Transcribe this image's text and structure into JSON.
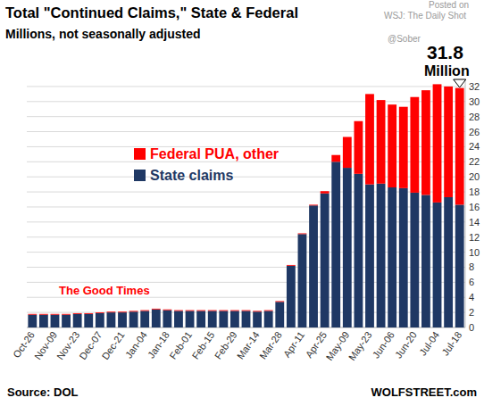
{
  "chart_data": {
    "type": "bar",
    "stacked": true,
    "grid": true,
    "title": "Total \"Continued Claims,\" State & Federal",
    "subtitle": "Millions, not seasonally adjusted",
    "annotations": [
      "The Good Times",
      "31.8",
      "Million"
    ],
    "source": "Source: DOL",
    "credit": "WOLFSTREET.com",
    "watermark": [
      "Posted on",
      "WSJ: The Daily Shot",
      "@Sober"
    ],
    "categories": [
      "Oct-26",
      null,
      "Nov-09",
      null,
      "Nov-23",
      null,
      "Dec-07",
      null,
      "Dec-21",
      null,
      "Jan-04",
      null,
      "Jan-18",
      null,
      "Feb-01",
      null,
      "Feb-15",
      null,
      "Feb-29",
      null,
      "Mar-14",
      null,
      "Mar-28",
      null,
      "Apr-11",
      null,
      "Apr-25",
      null,
      "May-09",
      null,
      "May-23",
      null,
      "Jun-06",
      null,
      "Jun-20",
      null,
      "Jul-04",
      null,
      "Jul-18"
    ],
    "series": [
      {
        "name": "State claims",
        "color": "#1f3864",
        "values": [
          1.7,
          1.7,
          1.7,
          1.7,
          1.8,
          1.8,
          1.9,
          2.0,
          2.0,
          2.1,
          2.2,
          2.4,
          2.3,
          2.2,
          2.2,
          2.2,
          2.2,
          2.2,
          2.2,
          2.2,
          2.1,
          2.2,
          3.4,
          8.2,
          12.4,
          16.2,
          17.8,
          22.0,
          21.2,
          20.4,
          19.0,
          19.1,
          18.6,
          18.5,
          17.9,
          17.6,
          16.6,
          17.3,
          16.3
        ]
      },
      {
        "name": "Federal PUA, other",
        "color": "#ff0000",
        "values": [
          0.1,
          0.1,
          0.1,
          0.1,
          0.1,
          0.1,
          0.1,
          0.1,
          0.1,
          0.1,
          0.1,
          0.1,
          0.1,
          0.1,
          0.1,
          0.1,
          0.1,
          0.1,
          0.1,
          0.1,
          0.1,
          0.1,
          0.1,
          0.1,
          0.1,
          0.1,
          0.3,
          0.9,
          4.1,
          7.0,
          12.0,
          11.1,
          11.0,
          10.8,
          12.7,
          13.9,
          15.7,
          14.7,
          15.5
        ]
      }
    ],
    "ylim": [
      0,
      33
    ],
    "yticks": [
      0,
      2,
      4,
      6,
      8,
      10,
      12,
      14,
      16,
      18,
      20,
      22,
      24,
      26,
      28,
      30,
      32
    ]
  }
}
